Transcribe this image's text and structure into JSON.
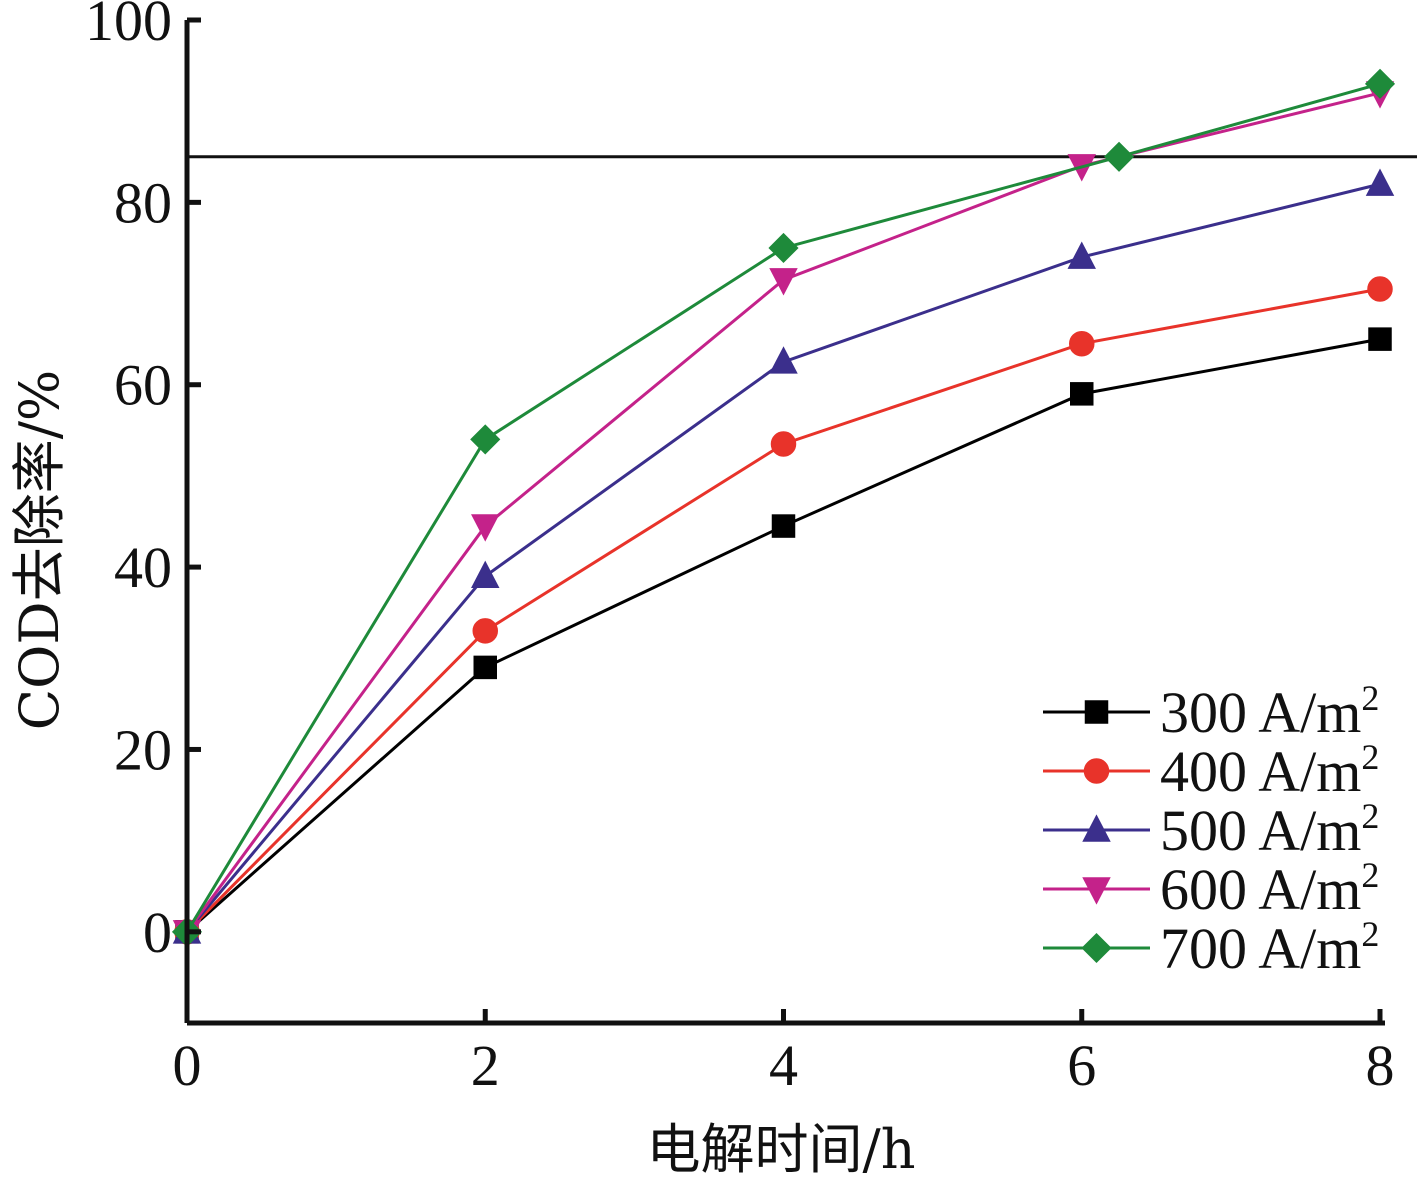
{
  "chart_data": {
    "type": "line",
    "xlabel": "电解时间/h",
    "ylabel": "COD去除率/%",
    "xlim": [
      0,
      8
    ],
    "ylim": [
      -10,
      100
    ],
    "xticks": [
      0,
      2,
      4,
      6,
      8
    ],
    "yticks": [
      0,
      20,
      40,
      60,
      80,
      100
    ],
    "xtick_labels": [
      "0",
      "2",
      "4",
      "6",
      "8"
    ],
    "ytick_labels": [
      "0",
      "20",
      "40",
      "60",
      "80",
      "100"
    ],
    "grid": false,
    "legend_position": "bottom-right",
    "reference_line": {
      "y": 85
    },
    "series": [
      {
        "name": "300 A/m²",
        "legend_base": "300 A/m",
        "legend_sup": "2",
        "color": "#000000",
        "marker": "square",
        "x": [
          0,
          2,
          4,
          6,
          8
        ],
        "y": [
          0,
          29,
          44.5,
          59,
          65
        ]
      },
      {
        "name": "400 A/m²",
        "legend_base": "400 A/m",
        "legend_sup": "2",
        "color": "#e8332a",
        "marker": "circle",
        "x": [
          0,
          2,
          4,
          6,
          8
        ],
        "y": [
          0,
          33,
          53.5,
          64.5,
          70.5
        ]
      },
      {
        "name": "500 A/m²",
        "legend_base": "500 A/m",
        "legend_sup": "2",
        "color": "#3b2f8c",
        "marker": "triangle-up",
        "x": [
          0,
          2,
          4,
          6,
          8
        ],
        "y": [
          0,
          39,
          62.5,
          74,
          82
        ]
      },
      {
        "name": "600 A/m²",
        "legend_base": "600 A/m",
        "legend_sup": "2",
        "color": "#c4228a",
        "marker": "triangle-down",
        "x": [
          0,
          2,
          4,
          6,
          8
        ],
        "y": [
          0,
          44.5,
          71.5,
          84,
          92
        ]
      },
      {
        "name": "700 A/m²",
        "legend_base": "700 A/m",
        "legend_sup": "2",
        "color": "#1e8a3a",
        "marker": "diamond",
        "x": [
          0,
          2,
          4,
          6.25,
          8
        ],
        "y": [
          0,
          54,
          75,
          85,
          93
        ]
      }
    ]
  }
}
